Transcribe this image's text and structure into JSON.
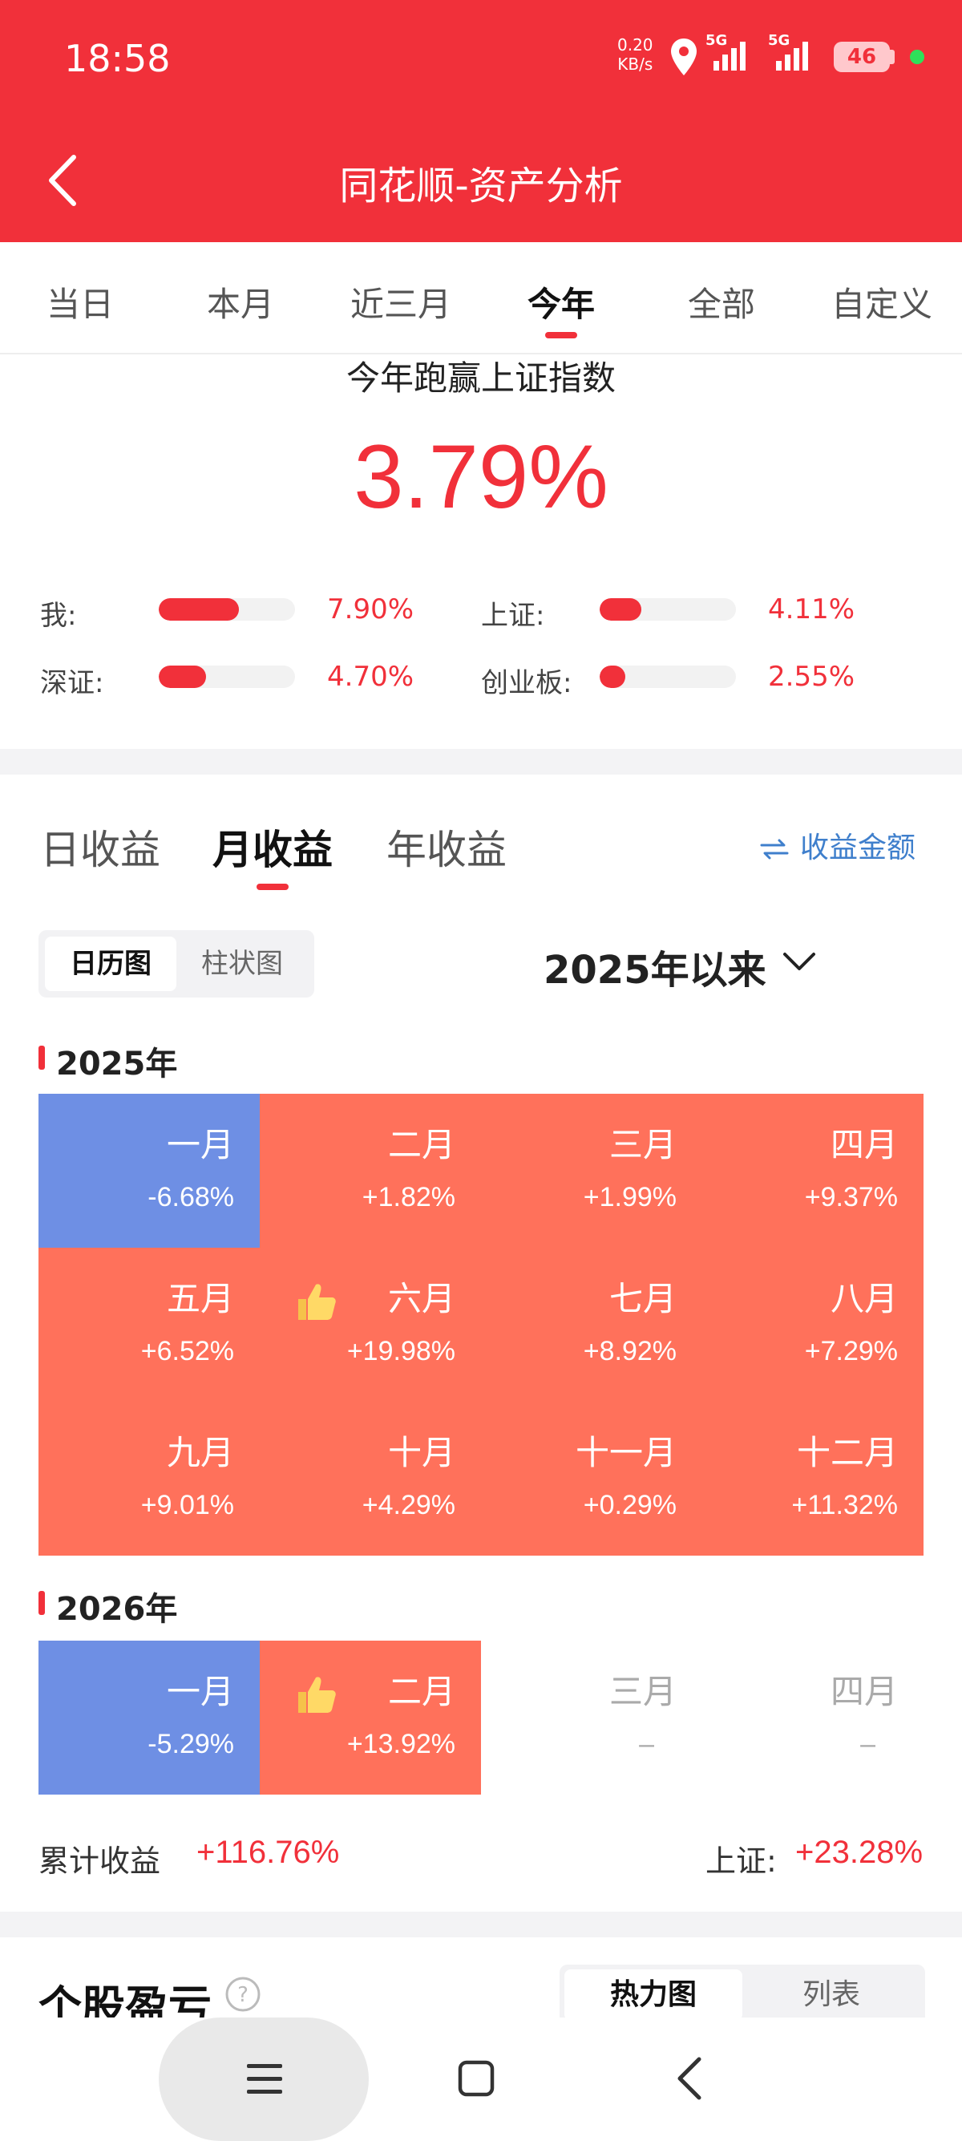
{
  "status_bar": {
    "time": "18:58",
    "net_speed_value": "0.20",
    "net_speed_unit": "KB/s",
    "sim1_label": "5G",
    "sim2_label": "5G",
    "battery": "46"
  },
  "header": {
    "title": "同花顺-资产分析"
  },
  "period_tabs": [
    {
      "label": "当日"
    },
    {
      "label": "本月"
    },
    {
      "label": "近三月"
    },
    {
      "label": "今年"
    },
    {
      "label": "全部"
    },
    {
      "label": "自定义"
    }
  ],
  "active_period": "今年",
  "beat": {
    "title": "今年跑赢上证指数",
    "value": "3.79%"
  },
  "comparisons": [
    {
      "label": "我:",
      "value": "7.90%",
      "pct": 7.9
    },
    {
      "label": "上证:",
      "value": "4.11%",
      "pct": 4.11
    },
    {
      "label": "深证:",
      "value": "4.70%",
      "pct": 4.7
    },
    {
      "label": "创业板:",
      "value": "2.55%",
      "pct": 2.55
    }
  ],
  "earnings_tabs": [
    {
      "label": "日收益"
    },
    {
      "label": "月收益"
    },
    {
      "label": "年收益"
    }
  ],
  "active_earnings_tab": "月收益",
  "amount_toggle": "收益金额",
  "view_toggle": {
    "calendar": "日历图",
    "bar": "柱状图",
    "active": "日历图"
  },
  "range_select": "2025年以来",
  "colors": {
    "brand_red": "#f1303a",
    "gain_cell": "#ff715b",
    "loss_cell": "#6e8fe4",
    "link_blue": "#3f7fcc"
  },
  "years": [
    {
      "year": "2025年",
      "months": [
        {
          "month": "一月",
          "value": "-6.68%",
          "state": "loss"
        },
        {
          "month": "二月",
          "value": "+1.82%",
          "state": "gain"
        },
        {
          "month": "三月",
          "value": "+1.99%",
          "state": "gain"
        },
        {
          "month": "四月",
          "value": "+9.37%",
          "state": "gain"
        },
        {
          "month": "五月",
          "value": "+6.52%",
          "state": "gain"
        },
        {
          "month": "六月",
          "value": "+19.98%",
          "state": "gain",
          "best": true
        },
        {
          "month": "七月",
          "value": "+8.92%",
          "state": "gain"
        },
        {
          "month": "八月",
          "value": "+7.29%",
          "state": "gain"
        },
        {
          "month": "九月",
          "value": "+9.01%",
          "state": "gain"
        },
        {
          "month": "十月",
          "value": "+4.29%",
          "state": "gain"
        },
        {
          "month": "十一月",
          "value": "+0.29%",
          "state": "gain"
        },
        {
          "month": "十二月",
          "value": "+11.32%",
          "state": "gain"
        }
      ]
    },
    {
      "year": "2026年",
      "months": [
        {
          "month": "一月",
          "value": "-5.29%",
          "state": "loss"
        },
        {
          "month": "二月",
          "value": "+13.92%",
          "state": "gain",
          "best": true
        },
        {
          "month": "三月",
          "value": "–",
          "state": "empty"
        },
        {
          "month": "四月",
          "value": "–",
          "state": "empty"
        }
      ]
    }
  ],
  "summary": {
    "cumulative_label": "累计收益",
    "cumulative_value": "+116.76%",
    "index_label": "上证:",
    "index_value": "+23.28%"
  },
  "stock_section": {
    "title": "个股盈亏",
    "toggle_heatmap": "热力图",
    "toggle_list": "列表",
    "active": "热力图"
  }
}
